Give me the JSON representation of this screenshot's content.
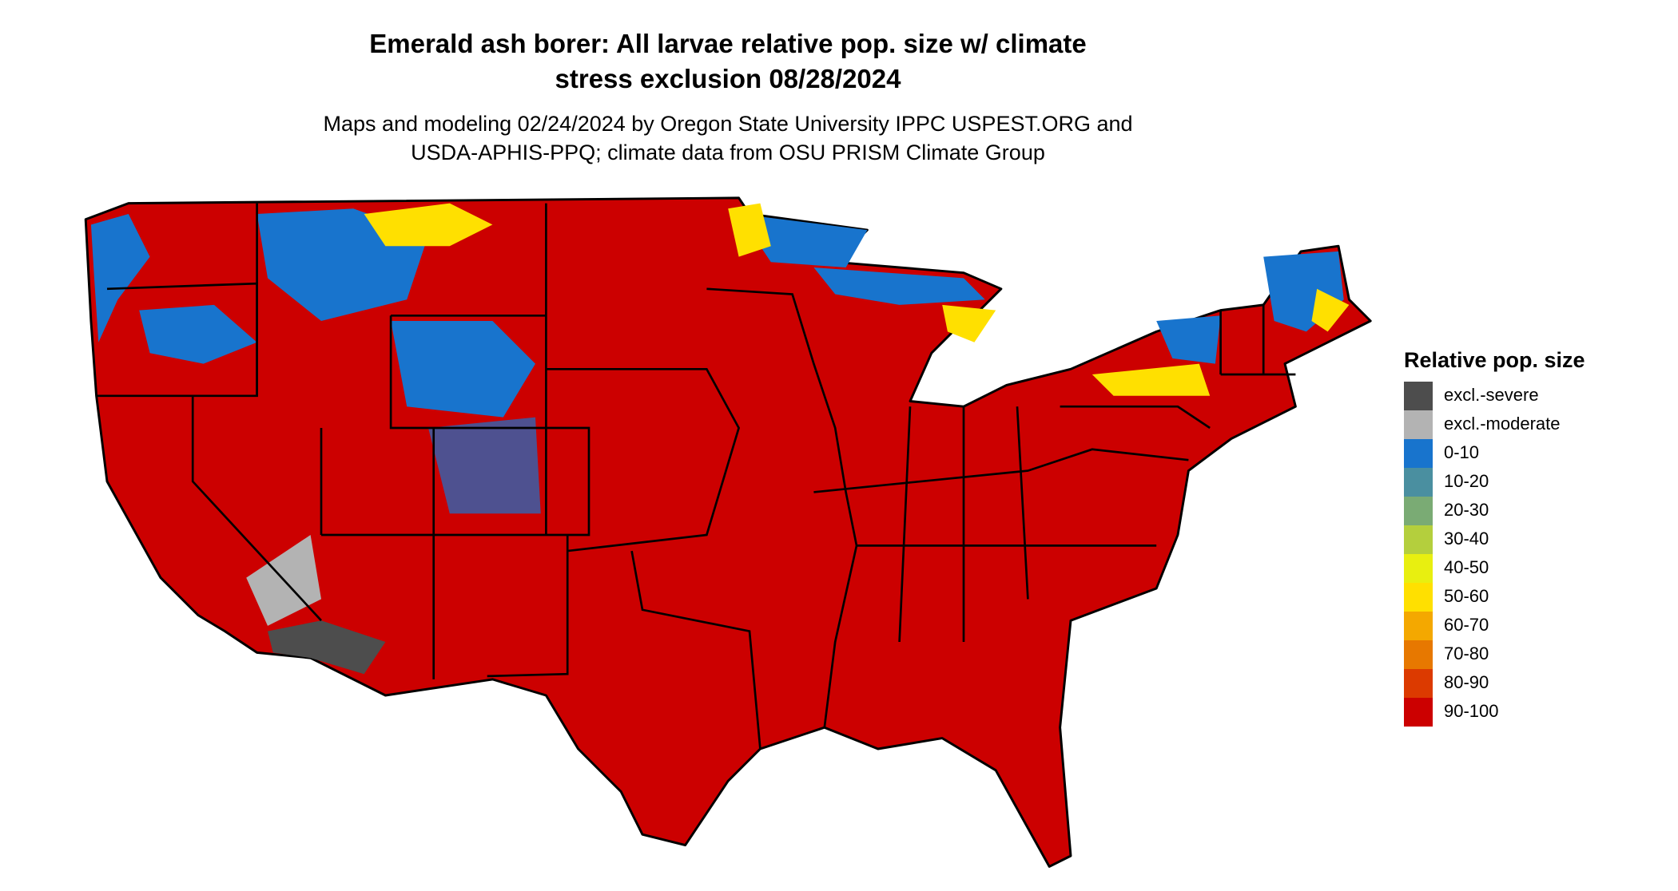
{
  "title": [
    "Emerald ash borer: All larvae relative pop. size w/ climate",
    "stress exclusion 08/28/2024"
  ],
  "subtitle": [
    "Maps and modeling 02/24/2024 by Oregon State University IPPC USPEST.ORG and",
    "USDA-APHIS-PPQ; climate data from OSU PRISM Climate Group"
  ],
  "legend": {
    "title": "Relative pop. size",
    "items": [
      {
        "label": "excl.-severe",
        "color": "#4d4d4d"
      },
      {
        "label": "excl.-moderate",
        "color": "#b3b3b3"
      },
      {
        "label": "0-10",
        "color": "#1874cd"
      },
      {
        "label": "10-20",
        "color": "#4a8fa0"
      },
      {
        "label": "20-30",
        "color": "#7aab74"
      },
      {
        "label": "30-40",
        "color": "#b4cf3d"
      },
      {
        "label": "40-50",
        "color": "#e8ef10"
      },
      {
        "label": "50-60",
        "color": "#ffe000"
      },
      {
        "label": "60-70",
        "color": "#f4a800"
      },
      {
        "label": "70-80",
        "color": "#e77800"
      },
      {
        "label": "80-90",
        "color": "#dc3a00"
      },
      {
        "label": "90-100",
        "color": "#cc0000"
      }
    ]
  }
}
